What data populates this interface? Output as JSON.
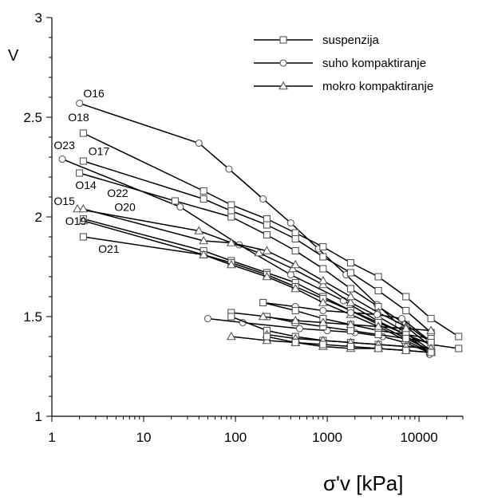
{
  "chart_data": {
    "type": "line",
    "xlabel": "σ'v [kPa]",
    "ylabel": "V",
    "x_scale": "log",
    "xlim": [
      1,
      30000
    ],
    "ylim": [
      1,
      3
    ],
    "x_ticks": [
      1,
      10,
      100,
      1000,
      10000
    ],
    "x_tick_labels": [
      "1",
      "10",
      "100",
      "1000",
      "10000"
    ],
    "y_ticks": [
      1,
      1.5,
      2,
      2.5,
      3
    ],
    "y_tick_labels": [
      "1",
      "1.5",
      "2",
      "2.5",
      "3"
    ],
    "grid": false,
    "legend_position": "top-right",
    "colors": {
      "line": "#000000",
      "marker_fill": "#ffffff",
      "marker_stroke": "#555555"
    },
    "legend": [
      {
        "label": "suspenzija",
        "marker": "square"
      },
      {
        "label": "suho kompaktiranje",
        "marker": "circle"
      },
      {
        "label": "mokro kompaktiranje",
        "marker": "triangle"
      }
    ],
    "sample_labels": [
      {
        "text": "O16",
        "x": 2.2,
        "y": 2.6
      },
      {
        "text": "O18",
        "x": 1.5,
        "y": 2.48
      },
      {
        "text": "O23",
        "x": 1.05,
        "y": 2.34
      },
      {
        "text": "O17",
        "x": 2.5,
        "y": 2.31
      },
      {
        "text": "O14",
        "x": 1.8,
        "y": 2.14
      },
      {
        "text": "O22",
        "x": 4.0,
        "y": 2.1
      },
      {
        "text": "O15",
        "x": 1.05,
        "y": 2.06
      },
      {
        "text": "O20",
        "x": 4.8,
        "y": 2.03
      },
      {
        "text": "O19",
        "x": 1.4,
        "y": 1.96
      },
      {
        "text": "O21",
        "x": 3.2,
        "y": 1.82
      }
    ],
    "series": [
      {
        "marker": "circle",
        "x": [
          2,
          40,
          85,
          200,
          400,
          800,
          1600,
          3500,
          6000,
          13000
        ],
        "y": [
          2.57,
          2.37,
          2.24,
          2.09,
          1.97,
          1.84,
          1.71,
          1.56,
          1.46,
          1.31
        ]
      },
      {
        "marker": "square",
        "x": [
          2.2,
          45,
          90,
          220,
          450,
          900,
          1800,
          3600,
          7200,
          13500,
          27000
        ],
        "y": [
          2.42,
          2.13,
          2.06,
          1.99,
          1.92,
          1.85,
          1.77,
          1.7,
          1.6,
          1.49,
          1.4
        ]
      },
      {
        "marker": "circle",
        "x": [
          1.3,
          25,
          110,
          400,
          1500,
          3500,
          6500,
          13000
        ],
        "y": [
          2.29,
          2.05,
          1.86,
          1.71,
          1.58,
          1.48,
          1.42,
          1.32
        ]
      },
      {
        "marker": "square",
        "x": [
          2.2,
          45,
          90,
          220,
          450,
          900,
          1800,
          3600,
          7200,
          13500
        ],
        "y": [
          2.28,
          2.09,
          2.03,
          1.96,
          1.89,
          1.8,
          1.72,
          1.63,
          1.53,
          1.42
        ]
      },
      {
        "marker": "square",
        "x": [
          2.0,
          22,
          90,
          220,
          450,
          900,
          1800,
          3600,
          7200,
          13500
        ],
        "y": [
          2.22,
          2.08,
          2.0,
          1.91,
          1.83,
          1.74,
          1.64,
          1.55,
          1.46,
          1.37
        ]
      },
      {
        "marker": "triangle",
        "x": [
          1.9,
          40,
          180,
          420,
          900,
          1800,
          3600,
          7200,
          13500
        ],
        "y": [
          2.04,
          1.93,
          1.82,
          1.74,
          1.66,
          1.57,
          1.5,
          1.42,
          1.33
        ]
      },
      {
        "marker": "triangle",
        "x": [
          2.2,
          45,
          90,
          220,
          450,
          900,
          1800,
          3600,
          7200,
          13500
        ],
        "y": [
          2.04,
          1.88,
          1.87,
          1.83,
          1.76,
          1.68,
          1.6,
          1.52,
          1.45,
          1.35
        ]
      },
      {
        "marker": "square",
        "x": [
          2.2,
          45,
          90,
          220,
          450,
          900,
          1800,
          3600,
          7200,
          13500
        ],
        "y": [
          1.99,
          1.83,
          1.78,
          1.72,
          1.67,
          1.6,
          1.53,
          1.46,
          1.39,
          1.33
        ]
      },
      {
        "marker": "square",
        "x": [
          2.2,
          45,
          90,
          220,
          450,
          900,
          1800,
          3600,
          7200,
          13500,
          27000
        ],
        "y": [
          1.9,
          1.81,
          1.77,
          1.71,
          1.65,
          1.59,
          1.53,
          1.47,
          1.41,
          1.36,
          1.34
        ]
      },
      {
        "marker": "triangle",
        "x": [
          2.2,
          45,
          90,
          220,
          450,
          900,
          1800,
          3600,
          7200,
          13500
        ],
        "y": [
          1.98,
          1.81,
          1.76,
          1.7,
          1.64,
          1.57,
          1.51,
          1.45,
          1.38,
          1.32
        ]
      },
      {
        "marker": "circle",
        "x": [
          200,
          450,
          900,
          1800,
          3500,
          6500,
          13000
        ],
        "y": [
          1.57,
          1.55,
          1.53,
          1.52,
          1.51,
          1.49,
          1.38
        ]
      },
      {
        "marker": "circle",
        "x": [
          50,
          120,
          500,
          1000,
          2000,
          4000,
          7000,
          13000
        ],
        "y": [
          1.49,
          1.47,
          1.44,
          1.43,
          1.42,
          1.4,
          1.37,
          1.32
        ]
      },
      {
        "marker": "square",
        "x": [
          200,
          450,
          900,
          1800,
          3600,
          7200,
          13500
        ],
        "y": [
          1.57,
          1.53,
          1.49,
          1.46,
          1.43,
          1.41,
          1.39
        ]
      },
      {
        "marker": "square",
        "x": [
          90,
          220,
          450,
          900,
          1800,
          3600,
          7200,
          13500
        ],
        "y": [
          1.52,
          1.5,
          1.47,
          1.45,
          1.43,
          1.41,
          1.39,
          1.37
        ]
      },
      {
        "marker": "square",
        "x": [
          90,
          220,
          450,
          900,
          1800,
          3600,
          7200,
          13500
        ],
        "y": [
          1.5,
          1.43,
          1.4,
          1.38,
          1.37,
          1.36,
          1.35,
          1.34
        ]
      },
      {
        "marker": "triangle",
        "x": [
          200,
          450,
          900,
          1800,
          3600,
          7200,
          13500
        ],
        "y": [
          1.5,
          1.48,
          1.47,
          1.46,
          1.45,
          1.44,
          1.43
        ]
      },
      {
        "marker": "triangle",
        "x": [
          220,
          450,
          900,
          1800,
          3600,
          7200,
          13500
        ],
        "y": [
          1.41,
          1.39,
          1.38,
          1.37,
          1.36,
          1.35,
          1.34
        ]
      },
      {
        "marker": "triangle",
        "x": [
          90,
          220,
          450,
          900,
          1800,
          3600,
          7200,
          13500
        ],
        "y": [
          1.4,
          1.38,
          1.37,
          1.35,
          1.34,
          1.34,
          1.33,
          1.32
        ]
      },
      {
        "marker": "square",
        "x": [
          220,
          450,
          900,
          1800,
          3600,
          7200,
          13500
        ],
        "y": [
          1.4,
          1.37,
          1.36,
          1.35,
          1.34,
          1.33,
          1.32
        ]
      }
    ]
  }
}
